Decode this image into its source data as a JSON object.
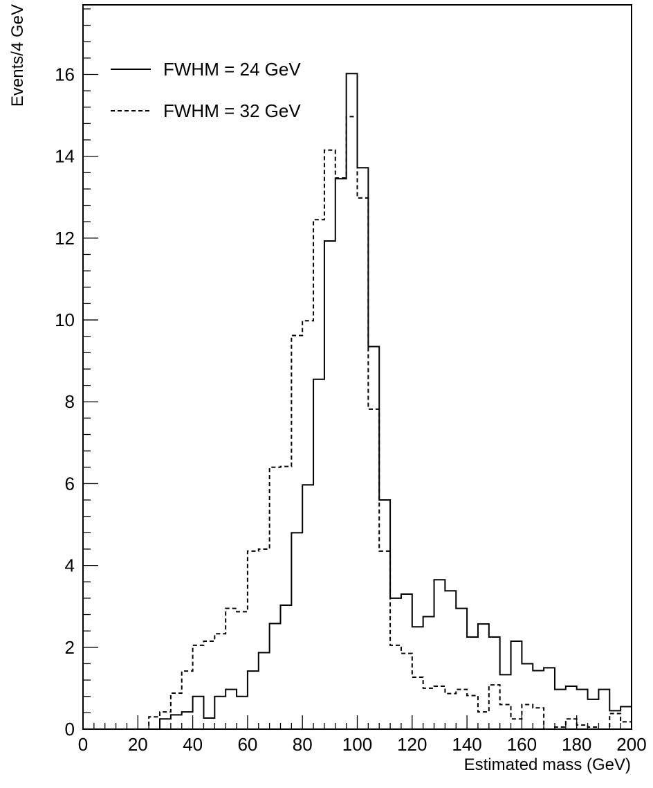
{
  "chart_data": {
    "type": "line",
    "title": "",
    "xlabel": "Estimated mass (GeV)",
    "ylabel": "Events/4 GeV",
    "xlim": [
      0,
      200
    ],
    "ylim": [
      0,
      17.7
    ],
    "bin_width": 4,
    "grid": false,
    "legend_position": "top-left",
    "x_ticks": [
      "0",
      "20",
      "40",
      "60",
      "80",
      "100",
      "120",
      "140",
      "160",
      "180",
      "200"
    ],
    "y_ticks": [
      "0",
      "2",
      "4",
      "6",
      "8",
      "10",
      "12",
      "14",
      "16"
    ],
    "x_bin_edges": [
      0,
      4,
      8,
      12,
      16,
      20,
      24,
      28,
      32,
      36,
      40,
      44,
      48,
      52,
      56,
      60,
      64,
      68,
      72,
      76,
      80,
      84,
      88,
      92,
      96,
      100,
      104,
      108,
      112,
      116,
      120,
      124,
      128,
      132,
      136,
      140,
      144,
      148,
      152,
      156,
      160,
      164,
      168,
      172,
      176,
      180,
      184,
      188,
      192,
      196,
      200
    ],
    "series": [
      {
        "name": "FWHM = 24 GeV",
        "style": "solid",
        "color": "#000000",
        "values": [
          0,
          0,
          0,
          0,
          0,
          0,
          0,
          0.25,
          0.35,
          0.42,
          0.8,
          0.27,
          0.8,
          0.97,
          0.8,
          1.42,
          1.87,
          2.58,
          3.03,
          4.8,
          5.97,
          8.55,
          11.93,
          13.45,
          16.02,
          13.72,
          9.35,
          5.6,
          3.2,
          3.3,
          2.5,
          2.75,
          3.65,
          3.38,
          2.95,
          2.25,
          2.57,
          2.25,
          1.33,
          2.15,
          1.6,
          1.43,
          1.5,
          0.97,
          1.05,
          0.97,
          0.73,
          0.97,
          0.45,
          0.55
        ]
      },
      {
        "name": "FWHM = 32 GeV",
        "style": "dashed",
        "color": "#000000",
        "values": [
          0,
          0,
          0,
          0,
          0,
          0,
          0.3,
          0.42,
          0.88,
          1.42,
          2.05,
          2.15,
          2.33,
          2.95,
          2.87,
          4.35,
          4.4,
          6.4,
          6.42,
          9.62,
          9.98,
          12.45,
          14.15,
          13.47,
          14.97,
          12.98,
          7.82,
          4.35,
          2.05,
          1.85,
          1.27,
          1.0,
          1.05,
          0.87,
          0.97,
          0.82,
          0.42,
          1.08,
          0.6,
          0.25,
          0.6,
          0.52,
          0,
          0.05,
          0.25,
          0.1,
          0.05,
          0,
          0.38,
          0.18
        ]
      }
    ]
  }
}
